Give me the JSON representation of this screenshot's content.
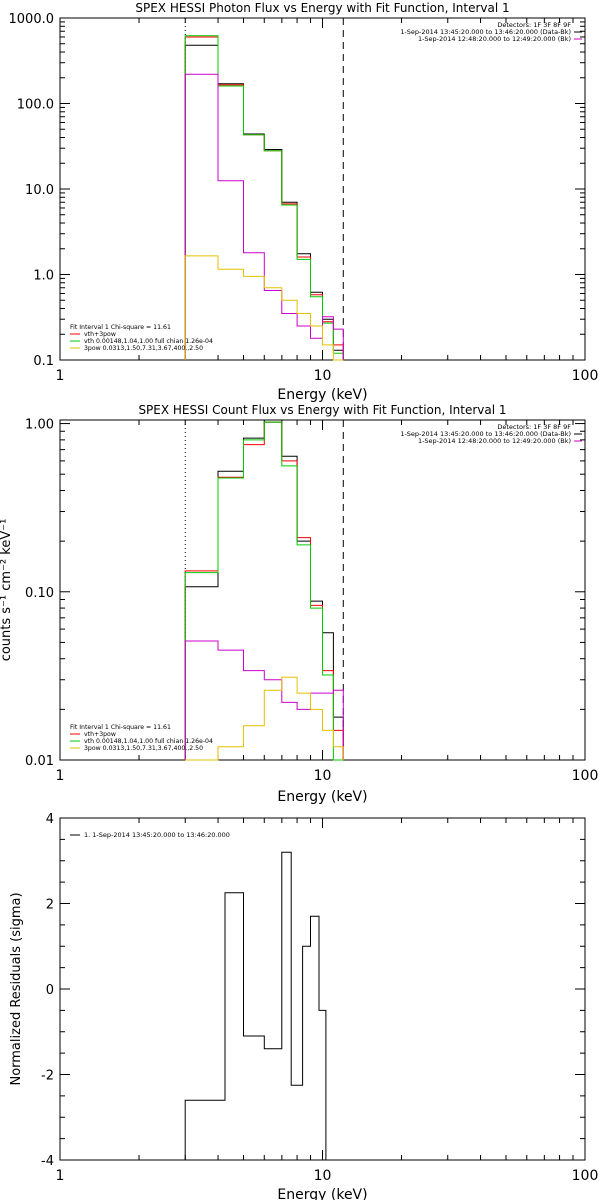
{
  "chart_data": [
    {
      "type": "line",
      "title": "SPEX HESSI Photon Flux vs Energy with Fit Function, Interval 1",
      "xlabel": "Energy (keV)",
      "ylabel": "",
      "xscale": "log",
      "yscale": "log",
      "xlim": [
        1,
        100
      ],
      "ylim": [
        0.1,
        1000
      ],
      "xticks": [
        {
          "v": 1,
          "label": "1"
        },
        {
          "v": 10,
          "label": "10"
        },
        {
          "v": 100,
          "label": "100"
        }
      ],
      "yticks": [
        {
          "v": 1000,
          "label": "1000.0"
        },
        {
          "v": 100,
          "label": "100.0"
        },
        {
          "v": 10,
          "label": "10.0"
        },
        {
          "v": 1,
          "label": "1.0"
        },
        {
          "v": 0.1,
          "label": "0.1"
        }
      ],
      "vlines": [
        {
          "x": 3,
          "style": "dotted"
        },
        {
          "x": 12,
          "style": "dashed"
        }
      ],
      "header_lines": [
        "Detectors: 1F 3F 8F 9F",
        "1-Sep-2014 13:45:20.000 to 13:46:20.000 (Data-Bk)",
        "1-Sep-2014 12:48:20.000 to 12:49:20.000 (Bk)"
      ],
      "header_colors": [
        "",
        "#000000",
        "#cc00cc"
      ],
      "legend_lines": [
        {
          "text": "Fit Interval 1    Chi-square = 11.61",
          "color": ""
        },
        {
          "text": "vth+3pow",
          "color": "#ff0000"
        },
        {
          "text": "vth 0.00148,1.04,1.00   full chian 1.26e-04",
          "color": "#00cc00"
        },
        {
          "text": "3pow 0.0313,1.50,7.31,3.67,400.,2.50",
          "color": "#e6c000"
        }
      ],
      "edges": [
        3,
        4,
        5,
        6,
        7,
        8,
        9,
        10,
        11,
        12
      ],
      "series": [
        {
          "color": "#000000",
          "values": [
            480,
            170,
            44,
            29,
            7.0,
            1.75,
            0.62,
            0.3,
            0.13
          ]
        },
        {
          "color": "#ff0000",
          "values": [
            600,
            165,
            43,
            28,
            6.7,
            1.6,
            0.58,
            0.28,
            0.15
          ]
        },
        {
          "color": "#00cc00",
          "values": [
            620,
            160,
            43,
            28,
            6.5,
            1.5,
            0.55,
            0.27,
            0.12
          ]
        },
        {
          "color": "#cc00cc",
          "values": [
            220,
            12.5,
            1.8,
            0.65,
            0.35,
            0.25,
            0.18,
            0.32,
            0.23
          ]
        },
        {
          "color": "#e6c000",
          "values": [
            1.65,
            1.15,
            0.95,
            0.7,
            0.5,
            0.35,
            0.25,
            0.15,
            0.1
          ]
        }
      ]
    },
    {
      "type": "line",
      "title": "SPEX HESSI Count Flux vs Energy with Fit Function, Interval 1",
      "xlabel": "Energy (keV)",
      "ylabel": "counts s⁻¹ cm⁻² keV⁻¹",
      "xscale": "log",
      "yscale": "log",
      "xlim": [
        1,
        100
      ],
      "ylim": [
        0.01,
        1.05
      ],
      "xticks": [
        {
          "v": 1,
          "label": "1"
        },
        {
          "v": 10,
          "label": "10"
        },
        {
          "v": 100,
          "label": "100"
        }
      ],
      "yticks": [
        {
          "v": 1,
          "label": "1.00"
        },
        {
          "v": 0.1,
          "label": "0.10"
        },
        {
          "v": 0.01,
          "label": "0.01"
        }
      ],
      "vlines": [
        {
          "x": 3,
          "style": "dotted"
        },
        {
          "x": 12,
          "style": "dashed"
        }
      ],
      "header_lines": [
        "Detectors: 1F 3F 8F 9F",
        "1-Sep-2014 13:45:20.000 to 13:46:20.000 (Data-Bk)",
        "1-Sep-2014 12:48:20.000 to 12:49:20.000 (Bk)"
      ],
      "header_colors": [
        "",
        "#000000",
        "#cc00cc"
      ],
      "legend_lines": [
        {
          "text": "Fit Interval 1    Chi-square = 11.61",
          "color": ""
        },
        {
          "text": "vth+3pow",
          "color": "#ff0000"
        },
        {
          "text": "vth 0.00148,1.04,1.00   full chian 1.26e-04",
          "color": "#00cc00"
        },
        {
          "text": "3pow 0.0313,1.50,7.31,3.67,400.,2.50",
          "color": "#e6c000"
        }
      ],
      "edges": [
        3,
        4,
        5,
        6,
        7,
        8,
        9,
        10,
        11,
        12
      ],
      "series": [
        {
          "color": "#000000",
          "values": [
            0.107,
            0.52,
            0.82,
            1.02,
            0.64,
            0.2,
            0.088,
            0.057,
            0.018
          ]
        },
        {
          "color": "#ff0000",
          "values": [
            0.133,
            0.48,
            0.75,
            1.02,
            0.6,
            0.21,
            0.083,
            0.034,
            0.015
          ]
        },
        {
          "color": "#00cc00",
          "values": [
            0.13,
            0.475,
            0.8,
            1.02,
            0.56,
            0.19,
            0.08,
            0.032,
            0.01
          ]
        },
        {
          "color": "#cc00cc",
          "values": [
            0.051,
            0.045,
            0.034,
            0.03,
            0.022,
            0.02,
            0.025,
            0.025,
            0.026
          ]
        },
        {
          "color": "#e6c000",
          "values": [
            0.0087,
            0.012,
            0.016,
            0.026,
            0.031,
            0.025,
            0.02,
            0.015,
            0.012
          ]
        }
      ]
    },
    {
      "type": "line",
      "title": "",
      "xlabel": "Energy (keV)",
      "ylabel": "Normalized Residuals (sigma)",
      "xscale": "log",
      "yscale": "linear",
      "xlim": [
        1,
        100
      ],
      "ylim": [
        -4,
        4
      ],
      "xticks": [
        {
          "v": 1,
          "label": "1"
        },
        {
          "v": 10,
          "label": "10"
        },
        {
          "v": 100,
          "label": "100"
        }
      ],
      "yticks": [
        {
          "v": 4,
          "label": "4"
        },
        {
          "v": 2,
          "label": "2"
        },
        {
          "v": 0,
          "label": "0"
        },
        {
          "v": -2,
          "label": "-2"
        },
        {
          "v": -4,
          "label": "-4"
        }
      ],
      "vlines": [],
      "header_lines": [],
      "header_colors": [],
      "legend_lines": [
        {
          "text": "1.  1-Sep-2014 13:45:20.000 to 13:46:20.000",
          "color": "#000000"
        }
      ],
      "edges": [
        3,
        3.6,
        4.25,
        5,
        6,
        7,
        7.6,
        8.4,
        9,
        9.7,
        10.3,
        11.2,
        12
      ],
      "series": [
        {
          "color": "#000000",
          "values": [
            -2.6,
            -2.6,
            2.25,
            -1.1,
            -1.4,
            3.2,
            -2.25,
            1.0,
            1.7,
            -0.5,
            -4.0,
            -4.0
          ]
        }
      ]
    }
  ]
}
